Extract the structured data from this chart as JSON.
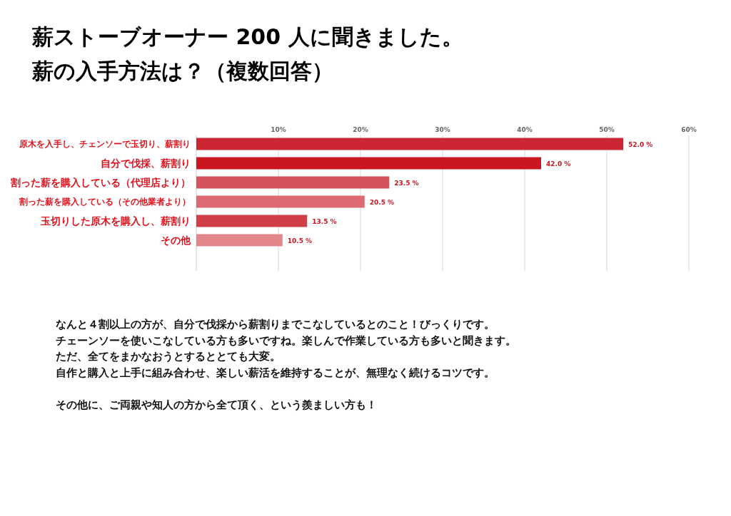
{
  "chart_data": {
    "type": "bar",
    "orientation": "horizontal",
    "title": "薪ストーブオーナー 200 人に聞きました。",
    "subtitle": "薪の入手方法は？（複数回答）",
    "categories": [
      "原木を入手し、チェンソーで玉切り、薪割り",
      "自分で伐採、薪割り",
      "割った薪を購入している（代理店より）",
      "割った薪を購入している（その他業者より）",
      "玉切りした原木を購入し、薪割り",
      "その他"
    ],
    "values": [
      52.0,
      42.0,
      23.5,
      20.5,
      13.5,
      10.5
    ],
    "colors": [
      "#cc2633",
      "#c9161f",
      "#d5535c",
      "#dd6a72",
      "#d23e47",
      "#e2868c"
    ],
    "value_labels": [
      "52.0 %",
      "42.0 %",
      "23.5 %",
      "20.5 %",
      "13.5 %",
      "10.5 %"
    ],
    "xlim": [
      0,
      60
    ],
    "xticks": [
      {
        "value": 10,
        "label": "10%"
      },
      {
        "value": 20,
        "label": "20%"
      },
      {
        "value": 30,
        "label": "30%"
      },
      {
        "value": 40,
        "label": "40%"
      },
      {
        "value": 50,
        "label": "50%"
      },
      {
        "value": 60,
        "label": "60%"
      }
    ],
    "grid": "x",
    "annotations": [
      "なんと４割以上の方が、自分で伐採から薪割りまでこなしているとのこと！びっくりです。",
      "チェーンソーを使いこなしている方も多いですね。楽しんで作業している方も多いと聞きます。",
      "ただ、全てをまかなおうとするととても大変。",
      "自作と購入と上手に組み合わせ、楽しい薪活を維持することが、無理なく続けるコツです。",
      "その他に、ご両親や知人の方から全て頂く、という羨ましい方も！"
    ]
  }
}
